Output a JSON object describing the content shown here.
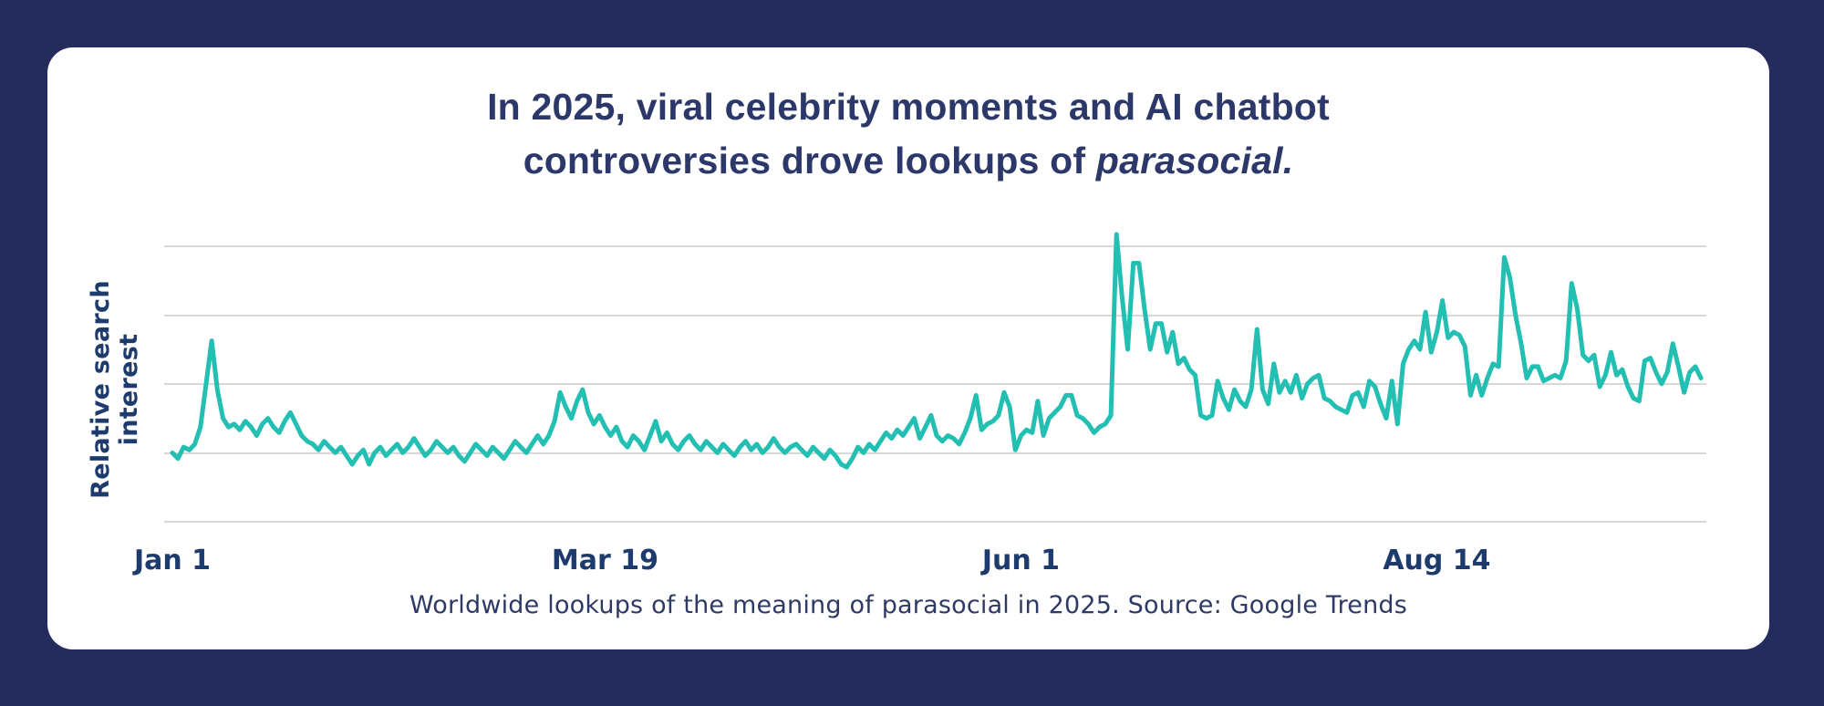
{
  "palette": {
    "background_navy": "#232c5c",
    "card_white": "#ffffff",
    "title_navy": "#2b3869",
    "axis_text_navy": "#1d3b6d",
    "caption_navy": "#2e3a65",
    "line_teal": "#23bfb2",
    "gridline_gray": "#d8d8d8"
  },
  "title": {
    "line1": "In 2025, viral celebrity moments and AI chatbot",
    "line2_prefix": "controversies drove lookups of ",
    "line2_italic": "parasocial."
  },
  "caption": {
    "text": "Worldwide lookups of the meaning of parasocial in 2025. Source: Google Trends"
  },
  "chart_data": {
    "type": "line",
    "title": "In 2025, viral celebrity moments and AI chatbot controversies drove lookups of parasocial.",
    "xlabel": "",
    "ylabel": "Relative search interest",
    "x_start": "Jan 1",
    "x_end": "Sep 30",
    "frequency": "daily",
    "x_ticks": [
      {
        "label": "Jan 1",
        "day": 0
      },
      {
        "label": "Mar 19",
        "day": 77
      },
      {
        "label": "Jun 1",
        "day": 151
      },
      {
        "label": "Aug 14",
        "day": 225
      }
    ],
    "ylim": [
      0,
      105
    ],
    "y_axis_tick_labels": "none",
    "grid": "horizontal gridlines only, 5 lines",
    "legend": "none",
    "series": [
      {
        "name": "Relative search interest for 'parasocial' (Google Trends, worldwide)",
        "values": [
          24,
          22,
          26,
          25,
          27,
          33,
          48,
          63,
          46,
          36,
          33,
          34,
          32,
          35,
          33,
          30,
          34,
          36,
          33,
          31,
          35,
          38,
          34,
          30,
          28,
          27,
          25,
          28,
          26,
          24,
          26,
          23,
          20,
          23,
          25,
          20,
          24,
          26,
          23,
          25,
          27,
          24,
          26,
          29,
          26,
          23,
          25,
          28,
          26,
          24,
          26,
          23,
          21,
          24,
          27,
          25,
          23,
          26,
          24,
          22,
          25,
          28,
          26,
          24,
          27,
          30,
          27,
          30,
          35,
          45,
          40,
          36,
          42,
          46,
          38,
          34,
          37,
          33,
          30,
          33,
          28,
          26,
          30,
          28,
          25,
          30,
          35,
          28,
          31,
          27,
          25,
          28,
          30,
          27,
          25,
          28,
          26,
          24,
          27,
          25,
          23,
          26,
          28,
          25,
          27,
          24,
          26,
          29,
          26,
          24,
          26,
          27,
          25,
          23,
          26,
          24,
          22,
          25,
          23,
          20,
          19,
          22,
          26,
          24,
          27,
          25,
          28,
          31,
          29,
          32,
          30,
          33,
          36,
          29,
          33,
          37,
          30,
          28,
          30,
          29,
          27,
          31,
          36,
          44,
          32,
          34,
          35,
          37,
          45,
          40,
          25,
          30,
          32,
          31,
          42,
          30,
          36,
          38,
          40,
          44,
          44,
          37,
          36,
          34,
          31,
          33,
          34,
          37,
          100,
          78,
          60,
          90,
          90,
          74,
          60,
          69,
          69,
          59,
          66,
          55,
          57,
          53,
          51,
          37,
          36,
          37,
          49,
          43,
          39,
          46,
          42,
          40,
          46,
          67,
          46,
          41,
          55,
          45,
          49,
          45,
          51,
          43,
          48,
          50,
          51,
          43,
          42,
          40,
          39,
          38,
          44,
          45,
          40,
          49,
          47,
          41,
          36,
          49,
          34,
          55,
          60,
          63,
          60,
          73,
          59,
          66,
          77,
          64,
          66,
          65,
          61,
          44,
          51,
          44,
          50,
          55,
          54,
          92,
          85,
          72,
          62,
          50,
          54,
          54,
          49,
          50,
          51,
          50,
          56,
          83,
          74,
          58,
          56,
          58,
          47,
          51,
          59,
          51,
          53,
          47,
          43,
          42,
          56,
          57,
          52,
          48,
          52,
          62,
          54,
          45,
          52,
          54,
          50
        ]
      }
    ]
  }
}
